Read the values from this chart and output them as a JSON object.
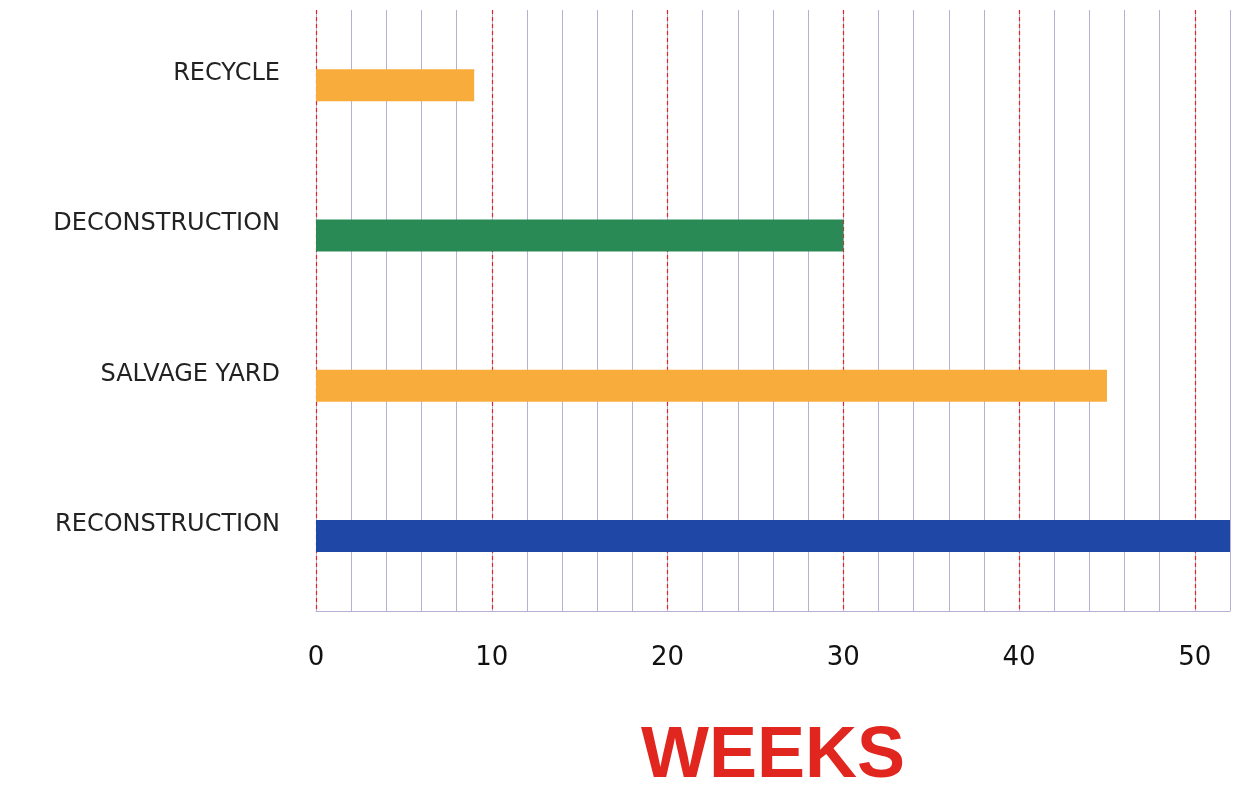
{
  "chart_data": {
    "type": "bar",
    "orientation": "horizontal",
    "xlabel": "WEEKS",
    "categories": [
      "RECYCLE",
      "DECONSTRUCTION",
      "SALVAGE YARD",
      "RECONSTRUCTION"
    ],
    "values": [
      9,
      30,
      45,
      52
    ],
    "colors": [
      "#f7ac3c",
      "#2a8a55",
      "#f7ac3c",
      "#1f48a6"
    ],
    "xlim": [
      0,
      52
    ],
    "xticks": [
      0,
      {
        "value": 2,
        "label": null
      },
      {
        "value": 4,
        "label": null
      },
      {
        "value": 6,
        "label": null
      },
      {
        "value": 8,
        "label": null
      },
      10,
      {
        "value": 12,
        "label": null
      },
      {
        "value": 14,
        "label": null
      },
      {
        "value": 16,
        "label": null
      },
      {
        "value": 18,
        "label": null
      },
      20,
      {
        "value": 22,
        "label": null
      },
      {
        "value": 24,
        "label": null
      },
      {
        "value": 26,
        "label": null
      },
      {
        "value": 28,
        "label": null
      },
      30,
      {
        "value": 32,
        "label": null
      },
      {
        "value": 34,
        "label": null
      },
      {
        "value": 36,
        "label": null
      },
      {
        "value": 38,
        "label": null
      },
      40,
      {
        "value": 42,
        "label": null
      },
      {
        "value": 44,
        "label": null
      },
      {
        "value": 46,
        "label": null
      },
      {
        "value": 48,
        "label": null
      },
      50,
      {
        "value": 52,
        "label": null
      }
    ],
    "grid": "x"
  }
}
